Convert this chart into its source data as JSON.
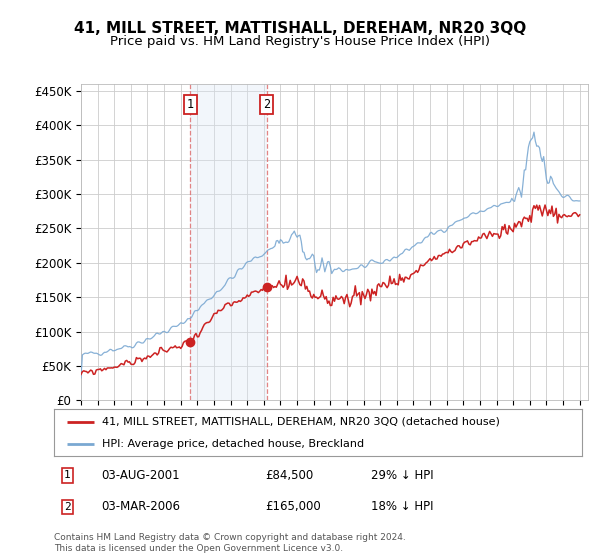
{
  "title": "41, MILL STREET, MATTISHALL, DEREHAM, NR20 3QQ",
  "subtitle": "Price paid vs. HM Land Registry's House Price Index (HPI)",
  "ylabel_ticks": [
    "£0",
    "£50K",
    "£100K",
    "£150K",
    "£200K",
    "£250K",
    "£300K",
    "£350K",
    "£400K",
    "£450K"
  ],
  "ytick_values": [
    0,
    50000,
    100000,
    150000,
    200000,
    250000,
    300000,
    350000,
    400000,
    450000
  ],
  "ylim": [
    0,
    460000
  ],
  "xlim_start": 1995.0,
  "xlim_end": 2025.5,
  "purchase1_x": 2001.583,
  "purchase1_y": 84500,
  "purchase2_x": 2006.167,
  "purchase2_y": 165000,
  "purchase1_date": "03-AUG-2001",
  "purchase1_price": "£84,500",
  "purchase1_hpi": "29% ↓ HPI",
  "purchase2_date": "03-MAR-2006",
  "purchase2_price": "£165,000",
  "purchase2_hpi": "18% ↓ HPI",
  "legend_line1": "41, MILL STREET, MATTISHALL, DEREHAM, NR20 3QQ (detached house)",
  "legend_line2": "HPI: Average price, detached house, Breckland",
  "footer": "Contains HM Land Registry data © Crown copyright and database right 2024.\nThis data is licensed under the Open Government Licence v3.0.",
  "hpi_color": "#7aa8d2",
  "price_color": "#cc2222",
  "shade_color": "#dce8f5",
  "vline_color": "#dd6666",
  "background_color": "#ffffff",
  "grid_color": "#cccccc"
}
